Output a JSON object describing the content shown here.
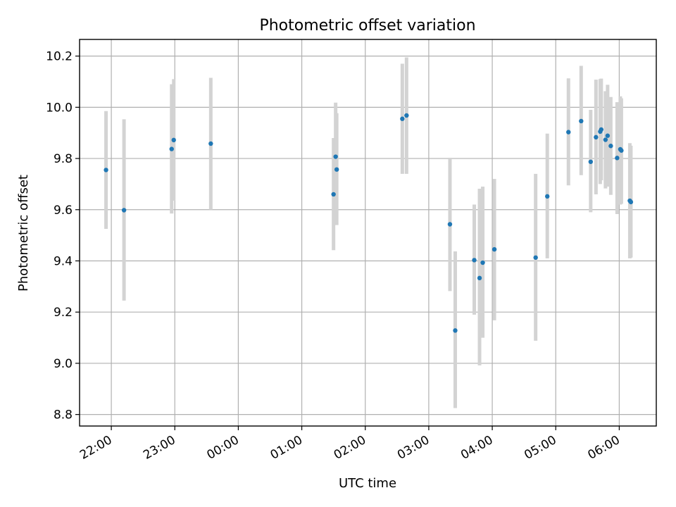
{
  "chart_data": {
    "type": "scatter",
    "title": "Photometric offset variation",
    "xlabel": "UTC time",
    "ylabel": "Photometric offset",
    "x_ticks": [
      {
        "time": "22:00",
        "label": "22:00"
      },
      {
        "time": "23:00",
        "label": "23:00"
      },
      {
        "time": "24:00",
        "label": "00:00"
      },
      {
        "time": "25:00",
        "label": "01:00"
      },
      {
        "time": "26:00",
        "label": "02:00"
      },
      {
        "time": "27:00",
        "label": "03:00"
      },
      {
        "time": "28:00",
        "label": "04:00"
      },
      {
        "time": "29:00",
        "label": "05:00"
      },
      {
        "time": "30:00",
        "label": "06:00"
      }
    ],
    "y_ticks": [
      {
        "value": 8.8,
        "label": "8.8"
      },
      {
        "value": 9.0,
        "label": "9.0"
      },
      {
        "value": 9.2,
        "label": "9.2"
      },
      {
        "value": 9.4,
        "label": "9.4"
      },
      {
        "value": 9.6,
        "label": "9.6"
      },
      {
        "value": 9.8,
        "label": "9.8"
      },
      {
        "value": 10.0,
        "label": "10.0"
      },
      {
        "value": 10.2,
        "label": "10.2"
      }
    ],
    "xlim": [
      "21:30",
      "30:35"
    ],
    "ylim": [
      8.755,
      10.265
    ],
    "grid": true,
    "colors": {
      "point": "#1f77b4",
      "errorbar": "#d3d3d3"
    },
    "points": [
      {
        "time": "21:55",
        "y": 9.755,
        "ylow": 9.525,
        "yhigh": 9.985
      },
      {
        "time": "22:12",
        "y": 9.598,
        "ylow": 9.245,
        "yhigh": 9.953
      },
      {
        "time": "22:57",
        "y": 9.837,
        "ylow": 9.585,
        "yhigh": 10.09
      },
      {
        "time": "22:59",
        "y": 9.872,
        "ylow": 9.635,
        "yhigh": 10.11
      },
      {
        "time": "23:34",
        "y": 9.858,
        "ylow": 9.6,
        "yhigh": 10.115
      },
      {
        "time": "25:30",
        "y": 9.66,
        "ylow": 9.442,
        "yhigh": 9.88
      },
      {
        "time": "25:32",
        "y": 9.807,
        "ylow": 9.6,
        "yhigh": 10.018
      },
      {
        "time": "25:33",
        "y": 9.757,
        "ylow": 9.54,
        "yhigh": 9.977
      },
      {
        "time": "26:35",
        "y": 9.955,
        "ylow": 9.74,
        "yhigh": 10.17
      },
      {
        "time": "26:39",
        "y": 9.968,
        "ylow": 9.74,
        "yhigh": 10.195
      },
      {
        "time": "27:20",
        "y": 9.543,
        "ylow": 9.282,
        "yhigh": 9.803
      },
      {
        "time": "27:25",
        "y": 9.128,
        "ylow": 8.825,
        "yhigh": 9.437
      },
      {
        "time": "27:43",
        "y": 9.403,
        "ylow": 9.19,
        "yhigh": 9.62
      },
      {
        "time": "27:48",
        "y": 9.333,
        "ylow": 8.992,
        "yhigh": 9.682
      },
      {
        "time": "27:51",
        "y": 9.393,
        "ylow": 9.1,
        "yhigh": 9.69
      },
      {
        "time": "28:02",
        "y": 9.445,
        "ylow": 9.168,
        "yhigh": 9.72
      },
      {
        "time": "28:41",
        "y": 9.413,
        "ylow": 9.088,
        "yhigh": 9.74
      },
      {
        "time": "28:52",
        "y": 9.652,
        "ylow": 9.41,
        "yhigh": 9.897
      },
      {
        "time": "29:12",
        "y": 9.903,
        "ylow": 9.695,
        "yhigh": 10.113
      },
      {
        "time": "29:24",
        "y": 9.946,
        "ylow": 9.735,
        "yhigh": 10.162
      },
      {
        "time": "29:33",
        "y": 9.787,
        "ylow": 9.59,
        "yhigh": 9.99
      },
      {
        "time": "29:38",
        "y": 9.883,
        "ylow": 9.66,
        "yhigh": 10.108
      },
      {
        "time": "29:42",
        "y": 9.905,
        "ylow": 9.7,
        "yhigh": 10.11
      },
      {
        "time": "29:43",
        "y": 9.913,
        "ylow": 9.715,
        "yhigh": 10.112
      },
      {
        "time": "29:47",
        "y": 9.873,
        "ylow": 9.683,
        "yhigh": 10.063
      },
      {
        "time": "29:49",
        "y": 9.889,
        "ylow": 9.69,
        "yhigh": 10.088
      },
      {
        "time": "29:52",
        "y": 9.849,
        "ylow": 9.658,
        "yhigh": 10.04
      },
      {
        "time": "29:58",
        "y": 9.802,
        "ylow": 9.583,
        "yhigh": 10.02
      },
      {
        "time": "30:01",
        "y": 9.836,
        "ylow": 9.62,
        "yhigh": 10.043
      },
      {
        "time": "30:02",
        "y": 9.831,
        "ylow": 9.623,
        "yhigh": 10.035
      },
      {
        "time": "30:10",
        "y": 9.635,
        "ylow": 9.41,
        "yhigh": 9.86
      },
      {
        "time": "30:11",
        "y": 9.63,
        "ylow": 9.413,
        "yhigh": 9.85
      }
    ]
  }
}
